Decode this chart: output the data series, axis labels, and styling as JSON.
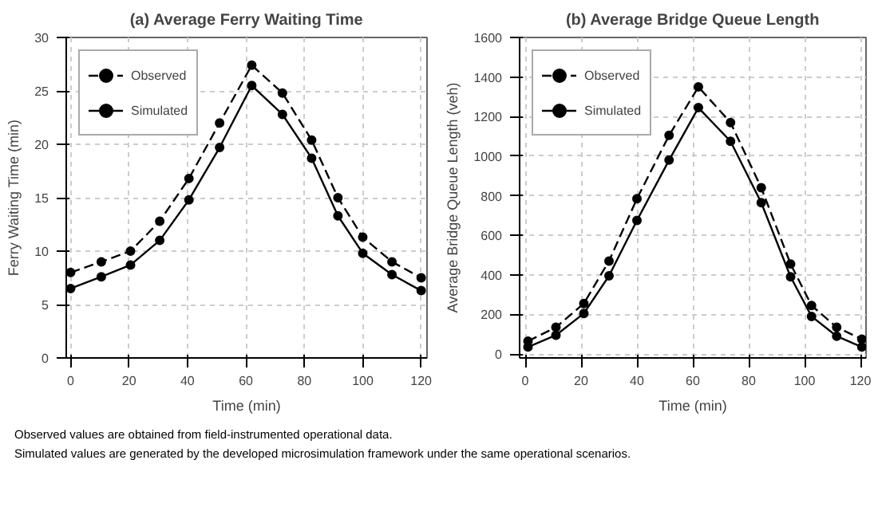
{
  "chart_data": [
    {
      "type": "line",
      "title": "(a) Average Ferry Waiting Time",
      "xlabel": "Time (min)",
      "ylabel": "Ferry Waiting Time (min)",
      "xlim": [
        -1.5,
        122
      ],
      "xticks": [
        0,
        20,
        40,
        60,
        80,
        100,
        120
      ],
      "ylim": [
        0,
        30
      ],
      "yticks": [
        0,
        5,
        10,
        15,
        20,
        25,
        30
      ],
      "grid": true,
      "legend": "top left",
      "marker": "circle",
      "series": [
        {
          "name": "Observed",
          "color": "#000000",
          "line_style": "dashed",
          "x": [
            0,
            10.5,
            20.5,
            30.5,
            40.5,
            51,
            62,
            72.5,
            82.5,
            91.5,
            100,
            110,
            120
          ],
          "values": [
            8.0,
            9.0,
            10.0,
            12.8,
            16.8,
            22.0,
            27.4,
            24.8,
            20.4,
            15.0,
            11.3,
            9.0,
            7.5
          ]
        },
        {
          "name": "Simulated",
          "color": "#000000",
          "line_style": "solid",
          "x": [
            0,
            10.5,
            20.5,
            30.5,
            40.5,
            51,
            62,
            72.5,
            82.5,
            91.5,
            100,
            110,
            120
          ],
          "values": [
            6.5,
            7.6,
            8.7,
            11.0,
            14.8,
            19.7,
            25.5,
            22.8,
            18.7,
            13.3,
            9.8,
            7.8,
            6.3
          ]
        }
      ]
    },
    {
      "type": "line",
      "title": "(b) Average Bridge Queue Length",
      "xlabel": "Time (min)",
      "ylabel": "Average Bridge Queue Length (veh)",
      "xlim": [
        -2,
        122
      ],
      "xticks": [
        0,
        20,
        40,
        60,
        80,
        100,
        120
      ],
      "ylim": [
        -20,
        1600
      ],
      "yticks": [
        0,
        200,
        400,
        600,
        800,
        1000,
        1200,
        1400,
        1600
      ],
      "grid": true,
      "legend": "top left",
      "marker": "circle",
      "series": [
        {
          "name": "Observed",
          "color": "#000000",
          "line_style": "dashed",
          "x": [
            1,
            11,
            21,
            30,
            40,
            51.5,
            62,
            73.5,
            84.5,
            95,
            102.5,
            111.5,
            120.5
          ],
          "values": [
            65,
            135,
            255,
            470,
            785,
            1105,
            1350,
            1170,
            840,
            455,
            245,
            135,
            75
          ]
        },
        {
          "name": "Simulated",
          "color": "#000000",
          "line_style": "solid",
          "x": [
            1,
            11,
            21,
            30,
            40,
            51.5,
            62,
            73.5,
            84.5,
            95,
            102.5,
            111.5,
            120.5
          ],
          "values": [
            35,
            95,
            205,
            395,
            675,
            980,
            1245,
            1075,
            765,
            390,
            190,
            90,
            35
          ]
        }
      ],
      "annotations": [
        "Observed values are obtained from field-instrumented operational data.",
        "Simulated values are generated by the developed microsimulation framework under the same operational scenarios."
      ]
    }
  ]
}
